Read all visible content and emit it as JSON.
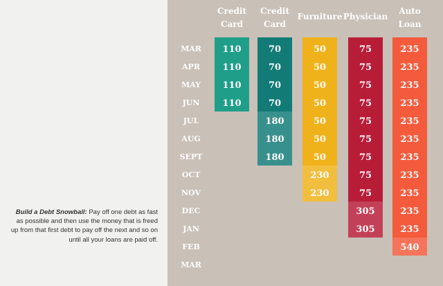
{
  "caption": {
    "lead": "Build a Debt Snowball:",
    "text": "Pay off one debt as fast as possible and then use the money that is freed up from that first debt to pay off the next and so on until all your loans are paid off."
  },
  "chart_data": {
    "type": "table",
    "months": [
      "MAR",
      "APR",
      "MAY",
      "JUN",
      "JUL",
      "AUG",
      "SEPT",
      "OCT",
      "NOV",
      "DEC",
      "JAN",
      "FEB",
      "MAR"
    ],
    "series": [
      {
        "name": "Credit Card",
        "header": [
          "Credit",
          "Card"
        ],
        "color": "#1f9e8a",
        "values": [
          110,
          110,
          110,
          110,
          null,
          null,
          null,
          null,
          null,
          null,
          null,
          null,
          null
        ]
      },
      {
        "name": "Credit Card",
        "header": [
          "Credit",
          "Card"
        ],
        "color": "#127b76",
        "values": [
          70,
          70,
          70,
          70,
          180,
          180,
          180,
          null,
          null,
          null,
          null,
          null,
          null
        ]
      },
      {
        "name": "Furniture",
        "header": [
          "Furniture"
        ],
        "color": "#f0b21a",
        "values": [
          50,
          50,
          50,
          50,
          50,
          50,
          50,
          230,
          230,
          null,
          null,
          null,
          null
        ]
      },
      {
        "name": "Physician",
        "header": [
          "Physician"
        ],
        "color": "#b81d38",
        "values": [
          75,
          75,
          75,
          75,
          75,
          75,
          75,
          75,
          75,
          305,
          305,
          null,
          null
        ]
      },
      {
        "name": "Auto Loan",
        "header": [
          "Auto",
          "Loan"
        ],
        "color": "#f45a3c",
        "values": [
          235,
          235,
          235,
          235,
          235,
          235,
          235,
          235,
          235,
          235,
          235,
          540,
          null
        ]
      }
    ]
  }
}
